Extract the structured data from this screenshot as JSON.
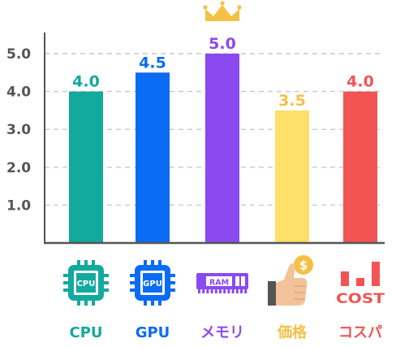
{
  "chart_data": {
    "type": "bar",
    "categories": [
      {
        "label": "CPU",
        "icon": "cpu-chip-icon",
        "icon_text": "CPU",
        "color": "#14a99d"
      },
      {
        "label": "GPU",
        "icon": "gpu-chip-icon",
        "icon_text": "GPU",
        "color": "#0a6cf2"
      },
      {
        "label": "メモリ",
        "icon": "ram-module-icon",
        "icon_text": "RAM",
        "color": "#8a4af0"
      },
      {
        "label": "価格",
        "icon": "thumbs-up-coin-icon",
        "icon_text": "$",
        "color": "#f5c044"
      },
      {
        "label": "コスパ",
        "icon": "cost-bars-icon",
        "icon_text": "COST",
        "color": "#f25454"
      }
    ],
    "values": [
      4.0,
      4.5,
      5.0,
      3.5,
      4.0
    ],
    "value_labels": [
      "4.0",
      "4.5",
      "5.0",
      "3.5",
      "4.0"
    ],
    "bar_colors": [
      "#14a99d",
      "#0a6cf2",
      "#8a4af0",
      "#fddf6a",
      "#f25454"
    ],
    "value_label_colors": [
      "#14a99d",
      "#0a6cf2",
      "#8a4af0",
      "#f5c044",
      "#f25454"
    ],
    "yticks": [
      "1.0",
      "2.0",
      "3.0",
      "4.0",
      "5.0"
    ],
    "ylim": [
      0,
      5.0
    ],
    "grid": "dashed horizontal",
    "highlight": {
      "index": 2,
      "icon": "crown-icon",
      "color": "#f5c044"
    },
    "axis_color": "#555555"
  }
}
